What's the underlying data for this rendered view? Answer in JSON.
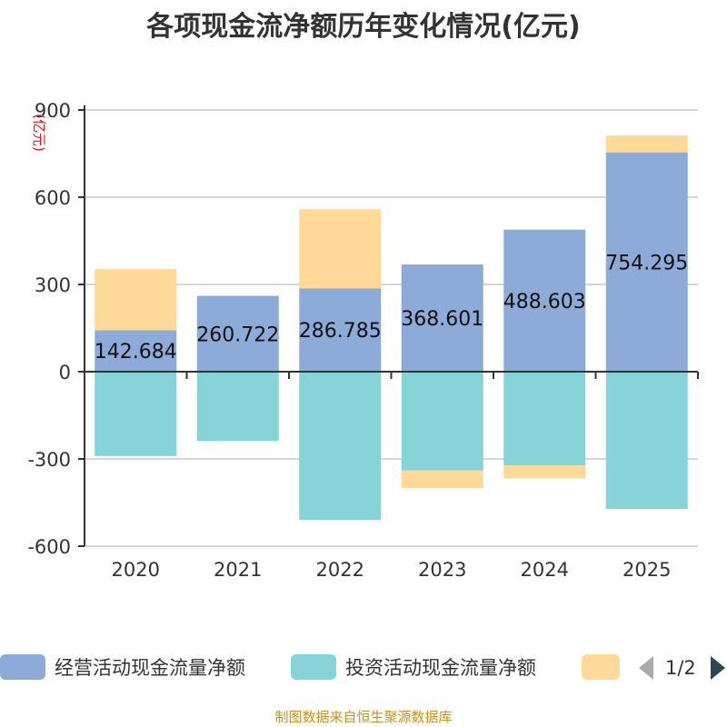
{
  "chart_data": {
    "type": "bar",
    "stacked": true,
    "title": "各项现金流净额历年变化情况(亿元)",
    "ylabel": "(亿元)",
    "xlabel": "",
    "ylim": [
      -600,
      900
    ],
    "yticks": [
      900,
      600,
      300,
      0,
      -300,
      -600
    ],
    "categories": [
      "2020",
      "2021",
      "2022",
      "2023",
      "2024",
      "2025"
    ],
    "series": [
      {
        "name": "经营活动现金流量净额",
        "color": "#8dabd9",
        "values": [
          142.684,
          260.722,
          286.785,
          368.601,
          488.603,
          754.295
        ],
        "labels": [
          "142.684",
          "260.722",
          "286.785",
          "368.601",
          "488.603",
          "754.295"
        ]
      },
      {
        "name": "投资活动现金流量净额",
        "color": "#86d4d7",
        "values": [
          -290,
          -238,
          -510,
          -340,
          -322,
          -472
        ]
      },
      {
        "name": "",
        "color": "#fed998",
        "values": [
          210,
          0,
          272,
          -60,
          -45,
          58
        ]
      }
    ],
    "legend": {
      "placement": "bottom",
      "page": "1/2"
    },
    "source": "制图数据来自恒生聚源数据库"
  }
}
